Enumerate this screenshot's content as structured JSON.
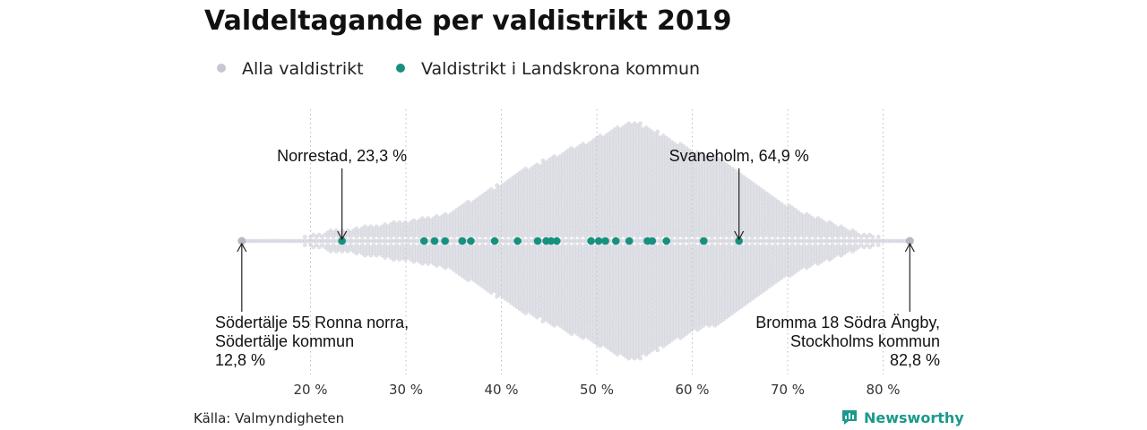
{
  "title": "Valdeltagande per valdistrikt 2019",
  "legend": [
    {
      "label": "Alla valdistrikt",
      "color": "#c7c6d3"
    },
    {
      "label": "Valdistrikt i Landskrona kommun",
      "color": "#16917f"
    }
  ],
  "source": "Källa: Valmyndigheten",
  "brand": "Newsworthy",
  "chart_data": {
    "type": "scatter",
    "title": "Valdeltagande per valdistrikt 2019",
    "xlabel": "",
    "ylabel": "",
    "xlim": [
      12,
      84
    ],
    "x_ticks": [
      20,
      30,
      40,
      50,
      60,
      70,
      80
    ],
    "x_tick_labels": [
      "20 %",
      "30 %",
      "40 %",
      "50 %",
      "60 %",
      "70 %",
      "80 %"
    ],
    "grid": "vertical-dotted",
    "legend_position": "top-left",
    "all_districts_distribution": {
      "min": 12.8,
      "max": 82.8,
      "mode": 53.8,
      "profile": [
        [
          12.8,
          0
        ],
        [
          16,
          0.01
        ],
        [
          19,
          0.03
        ],
        [
          22,
          0.08
        ],
        [
          26,
          0.12
        ],
        [
          30,
          0.16
        ],
        [
          34,
          0.22
        ],
        [
          38,
          0.38
        ],
        [
          42,
          0.58
        ],
        [
          46,
          0.72
        ],
        [
          50,
          0.86
        ],
        [
          53.8,
          1.0
        ],
        [
          57,
          0.88
        ],
        [
          60,
          0.76
        ],
        [
          63,
          0.68
        ],
        [
          66,
          0.5
        ],
        [
          69,
          0.34
        ],
        [
          72,
          0.22
        ],
        [
          75,
          0.13
        ],
        [
          78,
          0.06
        ],
        [
          81,
          0.02
        ],
        [
          82.8,
          0
        ]
      ]
    },
    "series": [
      {
        "name": "Valdistrikt i Landskrona kommun",
        "values": [
          23.3,
          31.9,
          33.0,
          34.1,
          35.9,
          36.8,
          39.3,
          41.7,
          43.8,
          44.7,
          45.2,
          45.8,
          49.4,
          50.2,
          50.9,
          52.0,
          53.4,
          55.3,
          55.8,
          57.3,
          61.2,
          64.9
        ]
      }
    ],
    "annotations": [
      {
        "x": 23.3,
        "label": "Norrestad, 23,3 %"
      },
      {
        "x": 64.9,
        "label": "Svaneholm, 64,9 %"
      },
      {
        "x": 12.8,
        "lines": [
          "Södertälje 55 Ronna norra,",
          "Södertälje kommun",
          "12,8 %"
        ]
      },
      {
        "x": 82.8,
        "lines": [
          "Bromma 18 Södra Ängby,",
          "Stockholms kommun",
          "82,8 %"
        ]
      }
    ]
  }
}
